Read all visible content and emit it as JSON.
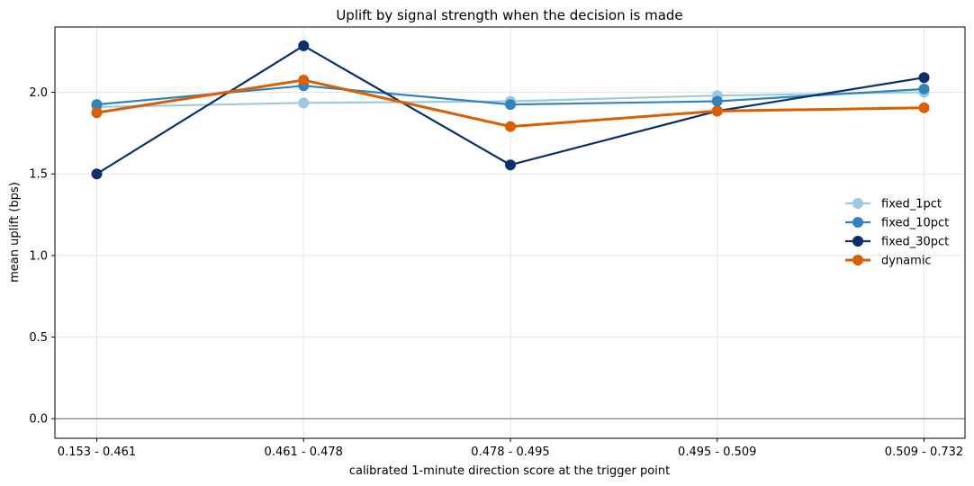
{
  "chart_data": {
    "type": "line",
    "title": "Uplift by signal strength when the decision is made",
    "xlabel": "calibrated 1-minute direction score at the trigger point",
    "ylabel": "mean uplift (bps)",
    "categories": [
      "0.153 - 0.461",
      "0.461 - 0.478",
      "0.478 - 0.495",
      "0.495 - 0.509",
      "0.509 - 0.732"
    ],
    "ylim": [
      -0.12,
      2.4
    ],
    "yticks": [
      0.0,
      0.5,
      1.0,
      1.5,
      2.0
    ],
    "ytick_labels": [
      "0.0",
      "0.5",
      "1.0",
      "1.5",
      "2.0"
    ],
    "grid": true,
    "zero_line": true,
    "legend_position": "center-right",
    "series": [
      {
        "name": "fixed_1pct",
        "color": "#9ecae1",
        "values": [
          1.91,
          1.935,
          1.945,
          1.98,
          2.0
        ]
      },
      {
        "name": "fixed_10pct",
        "color": "#3182bd",
        "values": [
          1.925,
          2.04,
          1.925,
          1.945,
          2.02
        ]
      },
      {
        "name": "fixed_30pct",
        "color": "#08306b",
        "values": [
          1.5,
          2.285,
          1.555,
          1.885,
          2.09
        ]
      },
      {
        "name": "dynamic",
        "color": "#d95f02",
        "values": [
          1.875,
          2.075,
          1.79,
          1.885,
          1.905
        ]
      }
    ]
  }
}
